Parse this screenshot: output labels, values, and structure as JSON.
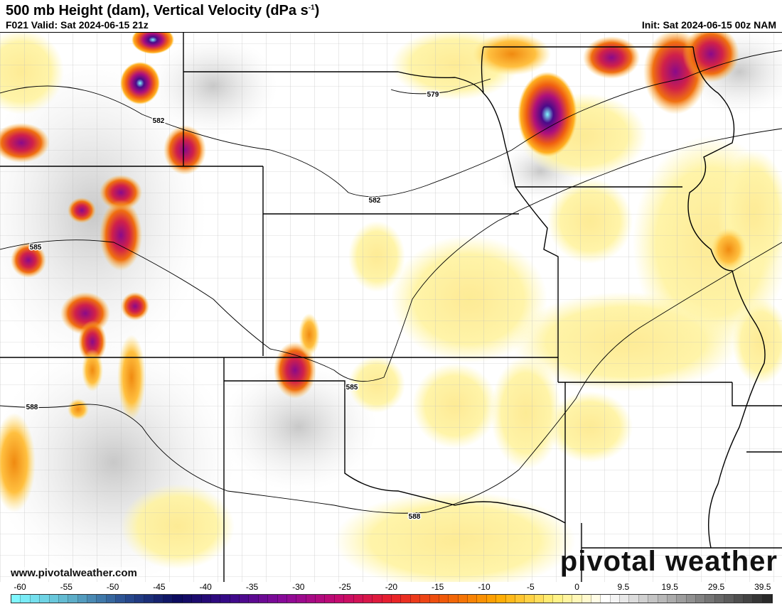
{
  "header": {
    "title": "500 mb Height (dam), Vertical Velocity (dPa s",
    "title_unit_sup": "-1",
    "title_close": ")",
    "valid": "F021 Valid: Sat 2024-06-15 21z",
    "init": "Init: Sat 2024-06-15 00z NAM"
  },
  "footer": {
    "website": "www.pivotalweather.com",
    "watermark": "pivotal weather"
  },
  "contour_labels": [
    "579",
    "582",
    "582",
    "585",
    "585",
    "588",
    "588"
  ],
  "colorbar": {
    "ticks": [
      "-60",
      "-55",
      "-50",
      "-45",
      "-40",
      "-35",
      "-30",
      "-25",
      "-20",
      "-15",
      "-10",
      "-5",
      "0",
      "9.5",
      "19.5",
      "29.5",
      "39.5"
    ],
    "stops": [
      "#7ff7ff",
      "#5fb3cc",
      "#2a4f91",
      "#0b0b5e",
      "#3a0a8a",
      "#8a0a9a",
      "#c40a70",
      "#e8202a",
      "#f05a08",
      "#ffaa00",
      "#fff07a",
      "#ffffff",
      "#bcbcbc",
      "#707070",
      "#2a2a2a"
    ]
  }
}
